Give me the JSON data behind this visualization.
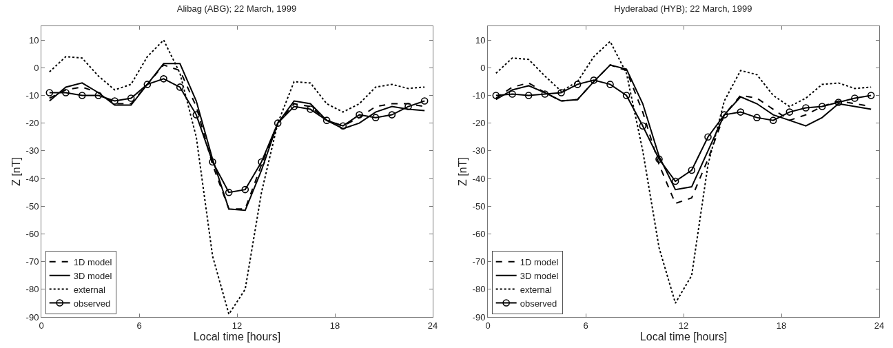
{
  "chart_data": [
    {
      "type": "line",
      "title": "Alibag (ABG); 22 March, 1999",
      "xlabel": "Local time [hours]",
      "ylabel": "Z [nT]",
      "x": [
        0.5,
        1.5,
        2.5,
        3.5,
        4.5,
        5.5,
        6.5,
        7.5,
        8.5,
        9.5,
        10.5,
        11.5,
        12.5,
        13.5,
        14.5,
        15.5,
        16.5,
        17.5,
        18.5,
        19.5,
        20.5,
        21.5,
        22.5,
        23.5
      ],
      "xlim": [
        0,
        24
      ],
      "xticks": [
        0,
        6,
        12,
        18,
        24
      ],
      "ylim": [
        -90,
        15
      ],
      "yticks": [
        -90,
        -80,
        -70,
        -60,
        -50,
        -40,
        -30,
        -20,
        -10,
        0,
        10
      ],
      "grid": false,
      "legend": "bottom left",
      "series": [
        {
          "name": "1D model",
          "color": "#000000",
          "line_style": "dashed",
          "marker": "none",
          "values": [
            -11,
            -8,
            -7,
            -9,
            -13,
            -13,
            -6,
            1,
            -1,
            -14,
            -35,
            -51,
            -51,
            -35,
            -20,
            -13,
            -14,
            -19,
            -21,
            -18,
            -14,
            -13,
            -13,
            -14
          ]
        },
        {
          "name": "3D model",
          "color": "#000000",
          "line_style": "solid",
          "marker": "none",
          "values": [
            -12,
            -7,
            -5.5,
            -9,
            -13.5,
            -13.5,
            -6,
            1.5,
            1.5,
            -12,
            -33,
            -51,
            -51.5,
            -37,
            -20,
            -12,
            -13,
            -19,
            -22,
            -20,
            -16,
            -14,
            -15,
            -15.5
          ]
        },
        {
          "name": "external",
          "color": "#000000",
          "line_style": "dotted",
          "marker": "none",
          "values": [
            -1.5,
            4,
            3.5,
            -3,
            -8,
            -6,
            4,
            10,
            -2,
            -25,
            -68,
            -89,
            -80,
            -45,
            -20,
            -5,
            -5.5,
            -13,
            -16,
            -13,
            -7,
            -6,
            -7.5,
            -7
          ]
        },
        {
          "name": "observed",
          "color": "#000000",
          "line_style": "solid",
          "marker": "circle",
          "values": [
            -9,
            -9,
            -10,
            -10,
            -12,
            -11,
            -6,
            -4,
            -7,
            -17,
            -34,
            -45,
            -44,
            -34,
            -20,
            -14,
            -15,
            -19,
            -21,
            -17,
            -18,
            -17,
            -14,
            -12
          ]
        }
      ]
    },
    {
      "type": "line",
      "title": "Hyderabad (HYB); 22 March, 1999",
      "xlabel": "Local time [hours]",
      "ylabel": "Z [nT]",
      "x": [
        0.5,
        1.5,
        2.5,
        3.5,
        4.5,
        5.5,
        6.5,
        7.5,
        8.5,
        9.5,
        10.5,
        11.5,
        12.5,
        13.5,
        14.5,
        15.5,
        16.5,
        17.5,
        18.5,
        19.5,
        20.5,
        21.5,
        22.5,
        23.5
      ],
      "xlim": [
        0,
        24
      ],
      "xticks": [
        0,
        6,
        12,
        18,
        24
      ],
      "ylim": [
        -90,
        15
      ],
      "yticks": [
        -90,
        -80,
        -70,
        -60,
        -50,
        -40,
        -30,
        -20,
        -10,
        0,
        10
      ],
      "grid": false,
      "legend": "bottom left",
      "series": [
        {
          "name": "1D model",
          "color": "#000000",
          "line_style": "dashed",
          "marker": "none",
          "values": [
            -11,
            -7,
            -5.5,
            -9,
            -12,
            -11.5,
            -5,
            1,
            -1,
            -16,
            -35,
            -49,
            -47,
            -33,
            -17,
            -10,
            -11,
            -15,
            -19,
            -17,
            -14,
            -12,
            -13,
            -14
          ]
        },
        {
          "name": "3D model",
          "color": "#000000",
          "line_style": "solid",
          "marker": "none",
          "values": [
            -11.5,
            -8,
            -6.5,
            -9,
            -12,
            -11.5,
            -5,
            1,
            -0.5,
            -13,
            -32,
            -44,
            -43,
            -30,
            -17,
            -10.5,
            -13,
            -17,
            -19,
            -21,
            -18,
            -13,
            -14,
            -15
          ]
        },
        {
          "name": "external",
          "color": "#000000",
          "line_style": "dotted",
          "marker": "none",
          "values": [
            -2,
            3.5,
            3,
            -3,
            -8.5,
            -5,
            4,
            9.5,
            -2,
            -30,
            -65,
            -85,
            -75,
            -35,
            -12,
            -1,
            -2.5,
            -10,
            -14,
            -11,
            -6,
            -5.5,
            -7.5,
            -7
          ]
        },
        {
          "name": "observed",
          "color": "#000000",
          "line_style": "solid",
          "marker": "circle",
          "values": [
            -10,
            -9.5,
            -10,
            -9.5,
            -9,
            -6,
            -4.5,
            -6,
            -10,
            -21,
            -33,
            -41,
            -37,
            -25,
            -17,
            -16,
            -18,
            -19,
            -16,
            -14.5,
            -14,
            -12.5,
            -11,
            -10
          ]
        }
      ]
    }
  ]
}
